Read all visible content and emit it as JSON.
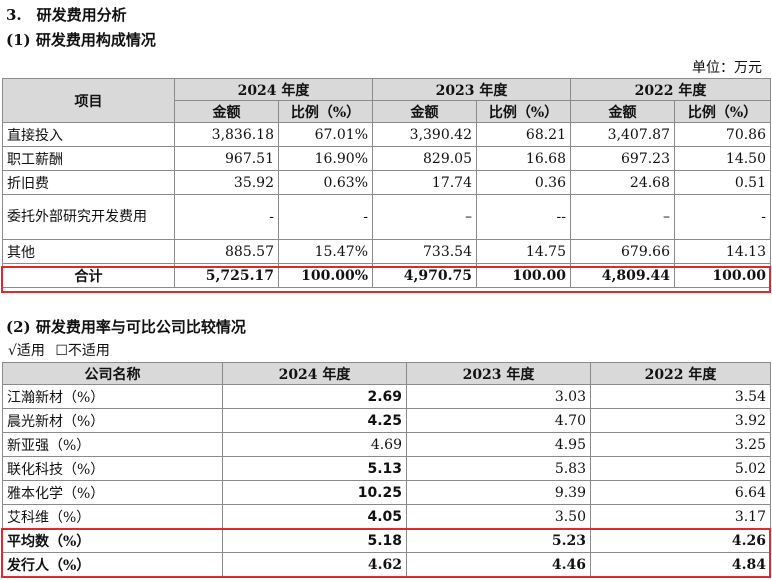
{
  "heading": "3.　研发费用分析",
  "subheading1": "(1) 研发费用构成情况",
  "unit_label": "单位：万元",
  "table1": {
    "item_header": "项目",
    "years": [
      "2024 年度",
      "2023 年度",
      "2022 年度"
    ],
    "sub_headers": [
      "金额",
      "比例（%）"
    ],
    "rows": [
      {
        "item": "直接投入",
        "v": [
          "3,836.18",
          "67.01%",
          "3,390.42",
          "68.21",
          "3,407.87",
          "70.86"
        ]
      },
      {
        "item": "职工薪酬",
        "v": [
          "967.51",
          "16.90%",
          "829.05",
          "16.68",
          "697.23",
          "14.50"
        ]
      },
      {
        "item": "折旧费",
        "v": [
          "35.92",
          "0.63%",
          "17.74",
          "0.36",
          "24.68",
          "0.51"
        ]
      },
      {
        "item": "委托外部研究开发费用",
        "v": [
          "-",
          "-",
          "–",
          "--",
          "–",
          "-"
        ]
      },
      {
        "item": "其他",
        "v": [
          "885.57",
          "15.47%",
          "733.54",
          "14.75",
          "679.66",
          "14.13"
        ]
      }
    ],
    "total": {
      "item": "合计",
      "v": [
        "5,725.17",
        "100.00%",
        "4,970.75",
        "100.00",
        "4,809.44",
        "100.00"
      ]
    }
  },
  "subheading2": "(2) 研发费用率与可比公司比较情况",
  "options": {
    "applicable": "√适用",
    "not_applicable": "☐不适用"
  },
  "table2": {
    "headers": [
      "公司名称",
      "2024 年度",
      "2023 年度",
      "2022 年度"
    ],
    "rows": [
      {
        "name": "江瀚新材（%）",
        "v": [
          "2.69",
          "3.03",
          "3.54"
        ]
      },
      {
        "name": "晨光新材（%）",
        "v": [
          "4.25",
          "4.70",
          "3.92"
        ]
      },
      {
        "name": "新亚强（%）",
        "v": [
          "4.69",
          "4.95",
          "3.25"
        ]
      },
      {
        "name": "联化科技（%）",
        "v": [
          "5.13",
          "5.83",
          "5.02"
        ]
      },
      {
        "name": "雅本化学（%）",
        "v": [
          "10.25",
          "9.39",
          "6.64"
        ]
      },
      {
        "name": "艾科维（%）",
        "v": [
          "4.05",
          "3.50",
          "3.17"
        ]
      }
    ],
    "average": {
      "name": "平均数（%）",
      "v": [
        "5.18",
        "5.23",
        "4.26"
      ]
    },
    "issuer": {
      "name": "发行人（%）",
      "v": [
        "4.62",
        "4.46",
        "4.84"
      ]
    }
  }
}
